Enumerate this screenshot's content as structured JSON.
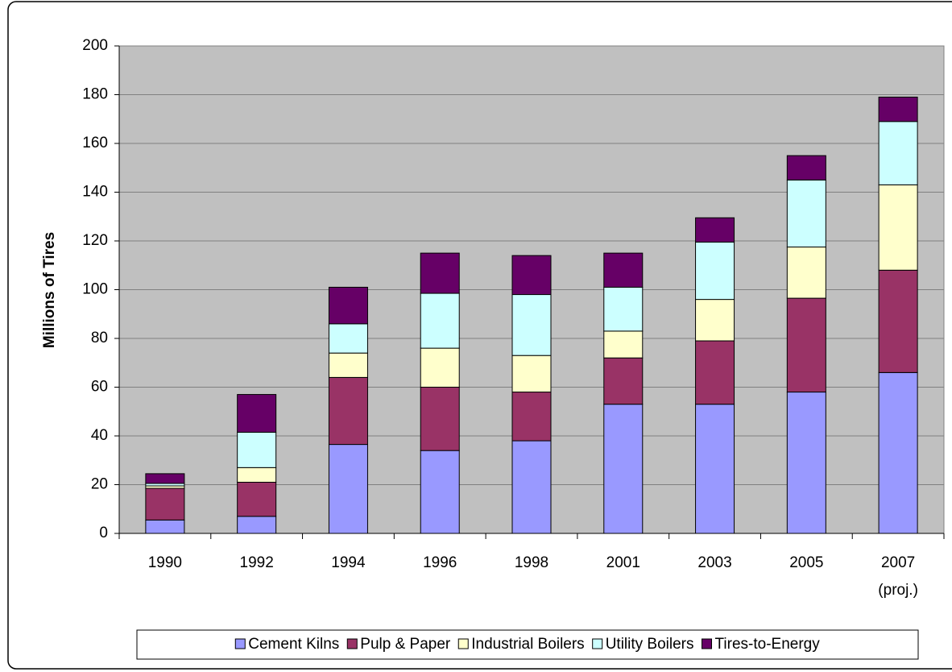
{
  "chart_data": {
    "type": "stacked_bar",
    "y_label": "Millions of Tires",
    "categories": [
      "1990",
      "1992",
      "1994",
      "1996",
      "1998",
      "2001",
      "2003",
      "2005",
      "2007\n(proj.)"
    ],
    "series": [
      {
        "name": "Cement Kilns",
        "color": "#9999ff",
        "values": [
          5.5,
          7,
          36.5,
          34,
          38,
          53,
          53,
          58,
          66
        ]
      },
      {
        "name": "Pulp & Paper",
        "color": "#993366",
        "values": [
          13,
          14,
          27.5,
          26,
          20,
          19,
          26,
          38.5,
          42
        ]
      },
      {
        "name": "Industrial Boilers",
        "color": "#ffffcc",
        "values": [
          1,
          6,
          10,
          16,
          15,
          11,
          17,
          21,
          35
        ]
      },
      {
        "name": "Utility Boilers",
        "color": "#ccffff",
        "values": [
          1,
          14.5,
          12,
          22.5,
          25,
          18,
          23.5,
          27.5,
          26
        ]
      },
      {
        "name": "Tires-to-Energy",
        "color": "#660066",
        "values": [
          4,
          15.5,
          15,
          16.5,
          16,
          14,
          10,
          10,
          10
        ]
      }
    ],
    "ylim": [
      0,
      200
    ],
    "yticks": [
      0,
      20,
      40,
      60,
      80,
      100,
      120,
      140,
      160,
      180,
      200
    ],
    "grid": true,
    "legend": "bottom",
    "plot_background": "#c0c0c0"
  }
}
